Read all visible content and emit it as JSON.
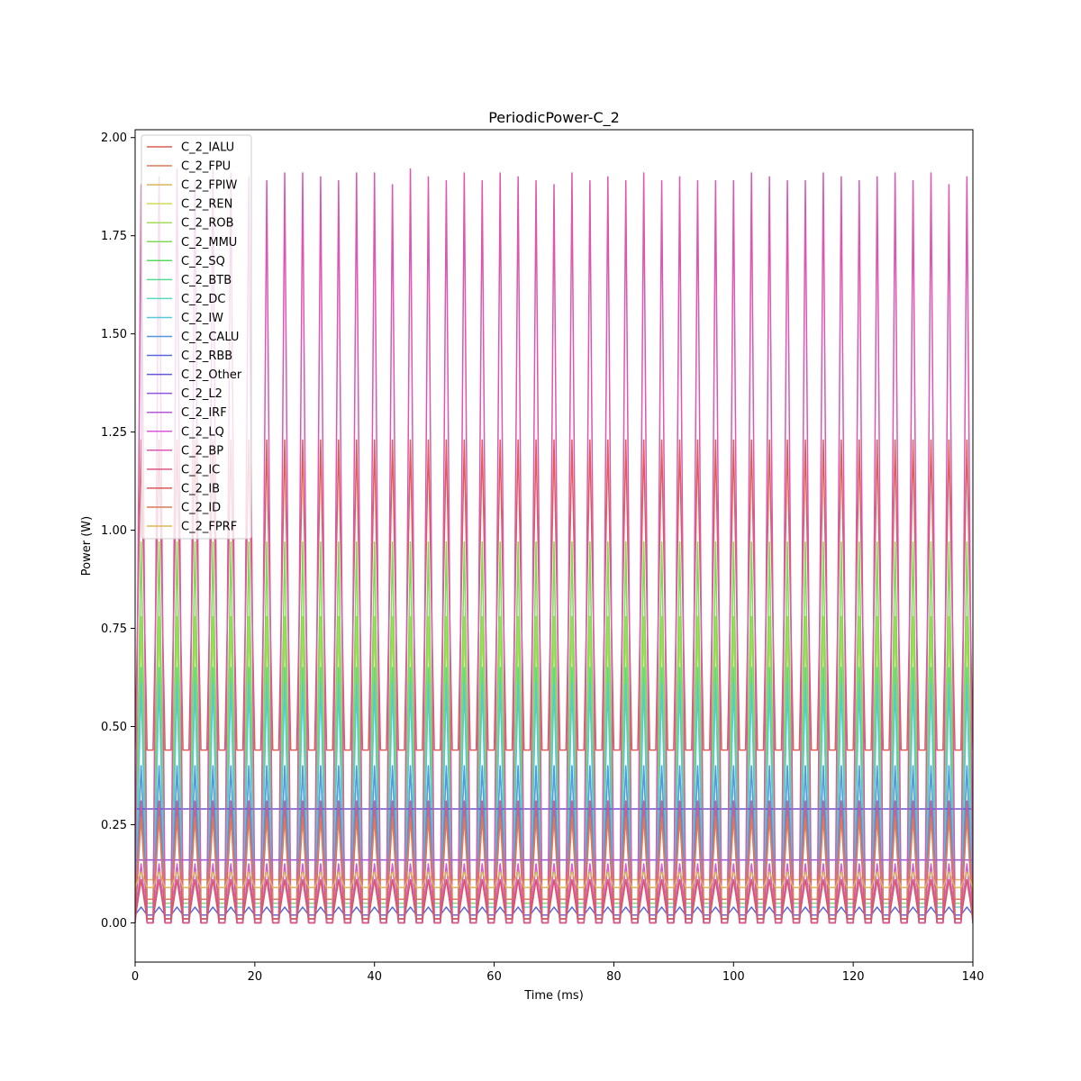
{
  "chart_data": {
    "type": "line",
    "title": "PeriodicPower-C_2",
    "xlabel": "Time (ms)",
    "ylabel": "Power (W)",
    "xlim": [
      0,
      140
    ],
    "ylim": [
      -0.1,
      2.02
    ],
    "xticks": [
      0,
      20,
      40,
      60,
      80,
      100,
      120,
      140
    ],
    "yticks": [
      0.0,
      0.25,
      0.5,
      0.75,
      1.0,
      1.25,
      1.5,
      1.75,
      2.0
    ],
    "xtick_labels": [
      "0",
      "20",
      "40",
      "60",
      "80",
      "100",
      "120",
      "140"
    ],
    "ytick_labels": [
      "0.00",
      "0.25",
      "0.50",
      "0.75",
      "1.00",
      "1.25",
      "1.50",
      "1.75",
      "2.00"
    ],
    "grid": false,
    "legend_position": "top-left",
    "period_ms": 3,
    "first_peak_ms": 1,
    "series": [
      {
        "name": "C_2_IALU",
        "color": "#db5f57",
        "base": 0.44,
        "peak": 1.23
      },
      {
        "name": "C_2_FPU",
        "color": "#db7c57",
        "base": 0.01,
        "peak": 0.27
      },
      {
        "name": "C_2_FPIW",
        "color": "#dbb557",
        "base": 0.11,
        "peak": 0.78
      },
      {
        "name": "C_2_REN",
        "color": "#d3db57",
        "base": 0.02,
        "peak": 0.31
      },
      {
        "name": "C_2_ROB",
        "color": "#a4db57",
        "base": 0.0,
        "peak": 0.78
      },
      {
        "name": "C_2_MMU",
        "color": "#7cdb57",
        "base": 0.05,
        "peak": 0.97
      },
      {
        "name": "C_2_SQ",
        "color": "#57db5f",
        "base": 0.0,
        "peak": 0.15
      },
      {
        "name": "C_2_BTB",
        "color": "#57db8e",
        "base": 0.0,
        "peak": 0.65
      },
      {
        "name": "C_2_DC",
        "color": "#57dbc0",
        "base": 0.04,
        "peak": 0.4
      },
      {
        "name": "C_2_IW",
        "color": "#57c8db",
        "base": 0.0,
        "peak": 0.61
      },
      {
        "name": "C_2_CALU",
        "color": "#5796db",
        "base": 0.01,
        "peak": 0.4
      },
      {
        "name": "C_2_RBB",
        "color": "#5768db",
        "base": 0.02,
        "peak": 0.04
      },
      {
        "name": "C_2_Other",
        "color": "#6257db",
        "base": 0.29,
        "peak": 0.29
      },
      {
        "name": "C_2_L2",
        "color": "#8e57db",
        "base": 0.16,
        "peak": 0.16
      },
      {
        "name": "C_2_IRF",
        "color": "#b557db",
        "base": 0.0,
        "peak": 0.31
      },
      {
        "name": "C_2_LQ",
        "color": "#db57db",
        "base": 0.0,
        "peak": 0.15
      },
      {
        "name": "C_2_BP",
        "color": "#db57b2",
        "base": 0.0,
        "peak": 1.9
      },
      {
        "name": "C_2_IC",
        "color": "#db5784",
        "base": 0.0,
        "peak": 0.31
      },
      {
        "name": "C_2_IB",
        "color": "#db5757",
        "base": 0.01,
        "peak": 0.11
      },
      {
        "name": "C_2_ID",
        "color": "#db7c57",
        "base": 0.06,
        "peak": 0.27
      },
      {
        "name": "C_2_FPRF",
        "color": "#dbb557",
        "base": 0.09,
        "peak": 0.13
      }
    ],
    "peak_variation_series": "C_2_BP",
    "peak_values_BP": [
      1.88,
      1.9,
      1.92,
      1.89,
      1.92,
      1.91,
      1.9,
      1.89,
      1.91,
      1.91,
      1.9,
      1.89,
      1.91,
      1.91,
      1.88,
      1.92,
      1.9,
      1.89,
      1.91,
      1.89,
      1.91,
      1.9,
      1.89,
      1.88,
      1.91,
      1.89,
      1.9,
      1.89,
      1.91,
      1.89,
      1.9,
      1.89,
      1.89,
      1.89,
      1.91,
      1.9,
      1.89,
      1.89,
      1.91,
      1.9,
      1.89,
      1.9,
      1.91,
      1.89,
      1.91,
      1.88,
      1.9
    ]
  }
}
